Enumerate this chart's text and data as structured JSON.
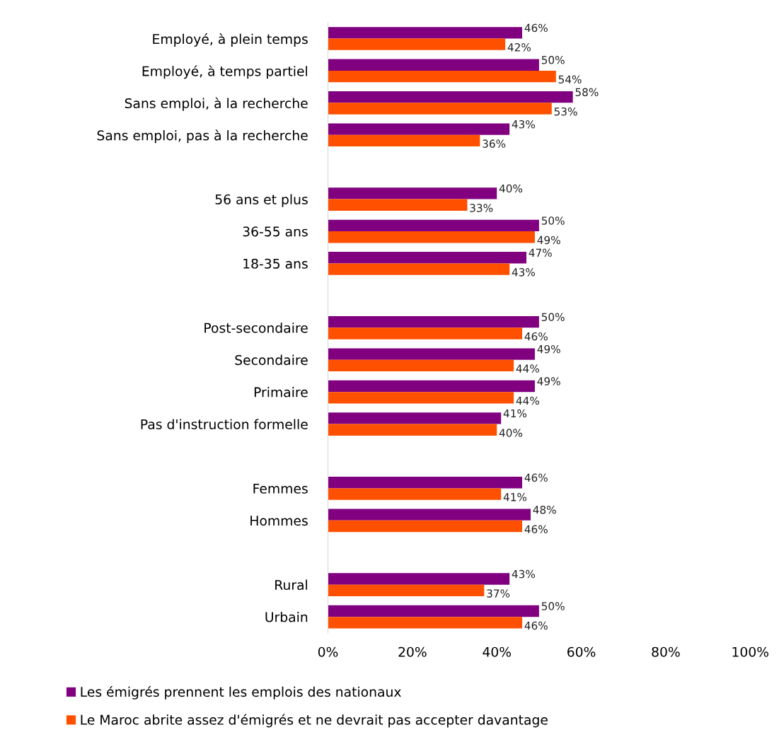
{
  "chart_data": {
    "type": "bar",
    "orientation": "horizontal",
    "categories": [
      "Employé, à plein temps",
      "Employé, à temps partiel",
      "Sans emploi, à la recherche",
      "Sans emploi, pas à la recherche",
      null,
      "56 ans et plus",
      "36-55 ans",
      "18-35 ans",
      null,
      "Post-secondaire",
      "Secondaire",
      "Primaire",
      "Pas d'instruction formelle",
      null,
      "Femmes",
      "Hommes",
      null,
      "Rural",
      "Urbain"
    ],
    "series": [
      {
        "name": "Les émigrés prennent les emplois des nationaux",
        "color": "#800080",
        "values": [
          46,
          50,
          58,
          43,
          null,
          40,
          50,
          47,
          null,
          50,
          49,
          49,
          41,
          null,
          46,
          48,
          null,
          43,
          50
        ],
        "value_labels": [
          "46%",
          "50%",
          "58%",
          "43%",
          null,
          "40%",
          "50%",
          "47%",
          null,
          "50%",
          "49%",
          "49%",
          "41%",
          null,
          "46%",
          "48%",
          null,
          "43%",
          "50%"
        ]
      },
      {
        "name": "Le Maroc abrite assez d'émigrés et ne devrait pas accepter davantage",
        "color": "#ff5000",
        "values": [
          42,
          54,
          53,
          36,
          null,
          33,
          49,
          43,
          null,
          46,
          44,
          44,
          40,
          null,
          41,
          46,
          null,
          37,
          46
        ],
        "value_labels": [
          "42%",
          "54%",
          "53%",
          "36%",
          null,
          "33%",
          "49%",
          "43%",
          null,
          "46%",
          "44%",
          "44%",
          "40%",
          null,
          "41%",
          "46%",
          null,
          "37%",
          "46%"
        ]
      }
    ],
    "xlim": [
      0,
      100
    ],
    "xticks": [
      {
        "value": 0,
        "label": "0%"
      },
      {
        "value": 20,
        "label": "20%"
      },
      {
        "value": 40,
        "label": "40%"
      },
      {
        "value": 60,
        "label": "60%"
      },
      {
        "value": 80,
        "label": "80%"
      },
      {
        "value": 100,
        "label": "100%"
      }
    ],
    "grid": false,
    "legend": "bottom"
  }
}
